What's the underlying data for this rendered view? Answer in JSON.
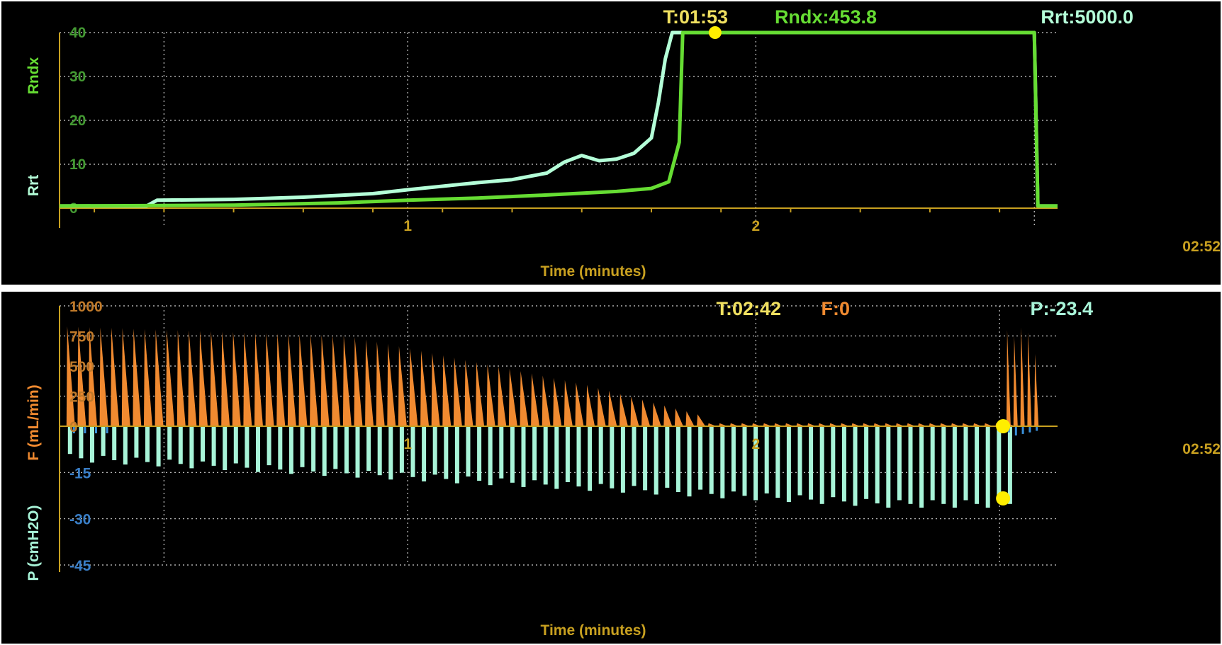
{
  "chart_data": [
    {
      "type": "line",
      "xlabel": "Time (minutes)",
      "xlim_label": "02:52",
      "x_ticks": [
        "1",
        "2"
      ],
      "y_ticks": [
        "0",
        "10",
        "20",
        "30",
        "40"
      ],
      "ylabel_primary": "Rndx",
      "ylabel_secondary": "Rrt",
      "ylim": [
        0,
        40
      ],
      "xlim": [
        0,
        2.8667
      ],
      "readout": {
        "time": "T:01:53",
        "rndx": "Rndx:453.8",
        "rrt": "Rrt:5000.0"
      },
      "cursor": {
        "x": 1.883,
        "y": 40
      },
      "colors": {
        "rndx": "#66dd33",
        "rrt": "#b4ffd8",
        "axis": "#c8a020",
        "grid": "#cfcfcf",
        "cursor": "#ffee00"
      },
      "series": [
        {
          "name": "Rrt",
          "x": [
            0,
            0.12,
            0.25,
            0.28,
            0.5,
            0.7,
            0.9,
            1.0,
            1.1,
            1.2,
            1.3,
            1.4,
            1.45,
            1.5,
            1.55,
            1.6,
            1.65,
            1.7,
            1.72,
            1.74,
            1.76,
            1.78,
            1.8,
            2.8,
            2.81,
            2.8667
          ],
          "values": [
            0.5,
            0.5,
            0.5,
            1.8,
            2.0,
            2.5,
            3.3,
            4.2,
            5.0,
            5.8,
            6.5,
            8.0,
            10.5,
            12.0,
            10.8,
            11.2,
            12.5,
            16.0,
            24.0,
            34.0,
            40,
            40,
            40,
            40,
            0.5,
            0.5
          ]
        },
        {
          "name": "Rndx",
          "x": [
            0,
            0.5,
            0.8,
            1.0,
            1.2,
            1.4,
            1.6,
            1.7,
            1.75,
            1.78,
            1.79,
            1.8,
            2.8,
            2.81,
            2.8667
          ],
          "values": [
            0.5,
            0.7,
            1.2,
            1.8,
            2.3,
            3.0,
            3.8,
            4.5,
            6.0,
            15.0,
            40,
            40,
            40,
            0.5,
            0.5
          ]
        }
      ]
    },
    {
      "type": "bar",
      "xlabel": "Time (minutes)",
      "xlim_label": "02:52",
      "x_ticks": [
        "1",
        "2"
      ],
      "f_ticks": [
        "0",
        "250",
        "500",
        "750",
        "1000"
      ],
      "p_ticks": [
        "-15",
        "-30",
        "-45"
      ],
      "ylabel_f": "F (mL/min)",
      "ylabel_p": "P (cmH2O)",
      "ylim_f": [
        0,
        1000
      ],
      "ylim_p": [
        -45,
        0
      ],
      "xlim": [
        0,
        2.8667
      ],
      "readout": {
        "time": "T:02:42",
        "f": "F:0",
        "p": "P:-23.4"
      },
      "cursor": {
        "x": 2.7,
        "f": 0,
        "p": -23.4
      },
      "colors": {
        "f": "#f08a30",
        "p": "#a8f4d8",
        "p_neg_small": "#3a8fd8",
        "axis": "#c8a020",
        "grid": "#cfcfcf",
        "cursor": "#ffee00"
      },
      "x_start": 0.02,
      "x_end": 2.72,
      "breaths": 86,
      "f_peak_start": 830,
      "f_peak_mid": 350,
      "f_peak_late": 25,
      "p_start": -9,
      "p_end": -24,
      "post": {
        "x": [
          2.72,
          2.74,
          2.76,
          2.78,
          2.8
        ],
        "f": [
          800,
          750,
          820,
          780,
          600
        ],
        "p": [
          -2,
          -3,
          -2.5,
          -2,
          -1.5
        ]
      }
    }
  ]
}
